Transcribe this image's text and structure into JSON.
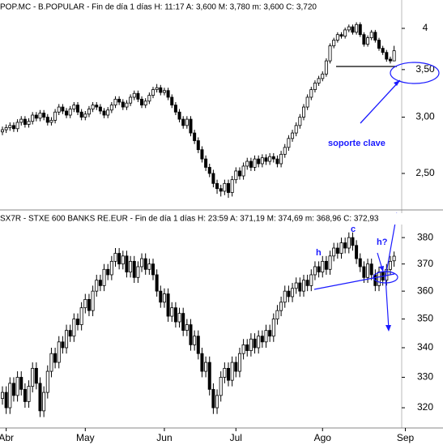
{
  "chart_data": [
    {
      "type": "candlestick",
      "title": "POP.MC - B.POPULAR - Fin de día 1 días H: 11:17 A: 3,600 M: 3,780 m: 3,600 C: 3,720",
      "log_scale": true,
      "up_color": "#ffffff",
      "down_color": "#000000",
      "ylim": [
        2.227,
        4.385
      ],
      "yticks": [
        4,
        {
          "value": 3.5,
          "label": "3,50"
        },
        {
          "value": 3.0,
          "label": "3,00"
        },
        {
          "value": 2.5,
          "label": "2,50"
        }
      ],
      "annotations": [
        "soporte clave"
      ],
      "ohlc": [
        [
          2.86,
          2.91,
          2.83,
          2.88
        ],
        [
          2.88,
          2.93,
          2.85,
          2.9
        ],
        [
          2.9,
          2.95,
          2.87,
          2.92
        ],
        [
          2.92,
          2.95,
          2.86,
          2.89
        ],
        [
          2.89,
          2.98,
          2.86,
          2.95
        ],
        [
          2.95,
          3.01,
          2.92,
          2.98
        ],
        [
          2.98,
          3.01,
          2.9,
          2.93
        ],
        [
          2.93,
          2.99,
          2.9,
          2.96
        ],
        [
          2.96,
          3.05,
          2.93,
          3.02
        ],
        [
          3.02,
          3.05,
          2.96,
          2.99
        ],
        [
          2.99,
          3.07,
          2.96,
          3.04
        ],
        [
          3.04,
          3.07,
          2.97,
          3.0
        ],
        [
          3.0,
          3.03,
          2.92,
          2.95
        ],
        [
          2.95,
          3.0,
          2.92,
          2.97
        ],
        [
          2.97,
          3.08,
          2.94,
          3.05
        ],
        [
          3.05,
          3.13,
          3.02,
          3.1
        ],
        [
          3.1,
          3.13,
          3.03,
          3.06
        ],
        [
          3.06,
          3.09,
          2.99,
          3.02
        ],
        [
          3.02,
          3.11,
          2.99,
          3.08
        ],
        [
          3.08,
          3.15,
          3.05,
          3.12
        ],
        [
          3.12,
          3.15,
          3.02,
          3.05
        ],
        [
          3.05,
          3.08,
          2.97,
          3.0
        ],
        [
          3.0,
          3.06,
          2.97,
          3.03
        ],
        [
          3.03,
          3.11,
          3.0,
          3.08
        ],
        [
          3.08,
          3.15,
          3.05,
          3.12
        ],
        [
          3.12,
          3.15,
          3.07,
          3.1
        ],
        [
          3.1,
          3.13,
          3.03,
          3.06
        ],
        [
          3.06,
          3.09,
          2.99,
          3.02
        ],
        [
          3.02,
          3.1,
          2.99,
          3.07
        ],
        [
          3.07,
          3.15,
          3.04,
          3.12
        ],
        [
          3.12,
          3.21,
          3.09,
          3.18
        ],
        [
          3.18,
          3.21,
          3.12,
          3.15
        ],
        [
          3.15,
          3.18,
          3.07,
          3.1
        ],
        [
          3.1,
          3.17,
          3.07,
          3.14
        ],
        [
          3.14,
          3.23,
          3.11,
          3.2
        ],
        [
          3.2,
          3.27,
          3.17,
          3.24
        ],
        [
          3.24,
          3.27,
          3.15,
          3.18
        ],
        [
          3.18,
          3.21,
          3.09,
          3.12
        ],
        [
          3.12,
          3.19,
          3.09,
          3.16
        ],
        [
          3.16,
          3.25,
          3.13,
          3.22
        ],
        [
          3.22,
          3.31,
          3.19,
          3.28
        ],
        [
          3.28,
          3.34,
          3.25,
          3.3
        ],
        [
          3.3,
          3.33,
          3.22,
          3.25
        ],
        [
          3.25,
          3.3,
          3.22,
          3.27
        ],
        [
          3.27,
          3.3,
          3.17,
          3.2
        ],
        [
          3.2,
          3.23,
          3.09,
          3.12
        ],
        [
          3.12,
          3.15,
          3.02,
          3.05
        ],
        [
          3.05,
          3.08,
          2.95,
          2.98
        ],
        [
          2.98,
          3.01,
          2.89,
          2.92
        ],
        [
          2.92,
          3.01,
          2.89,
          2.98
        ],
        [
          2.98,
          3.01,
          2.82,
          2.85
        ],
        [
          2.85,
          2.88,
          2.75,
          2.78
        ],
        [
          2.78,
          2.81,
          2.67,
          2.7
        ],
        [
          2.7,
          2.73,
          2.59,
          2.62
        ],
        [
          2.62,
          2.65,
          2.52,
          2.55
        ],
        [
          2.55,
          2.58,
          2.47,
          2.5
        ],
        [
          2.5,
          2.53,
          2.39,
          2.42
        ],
        [
          2.42,
          2.45,
          2.34,
          2.38
        ],
        [
          2.38,
          2.41,
          2.32,
          2.36
        ],
        [
          2.36,
          2.45,
          2.33,
          2.42
        ],
        [
          2.42,
          2.45,
          2.31,
          2.35
        ],
        [
          2.35,
          2.48,
          2.32,
          2.45
        ],
        [
          2.45,
          2.55,
          2.42,
          2.52
        ],
        [
          2.52,
          2.55,
          2.45,
          2.48
        ],
        [
          2.48,
          2.59,
          2.45,
          2.56
        ],
        [
          2.56,
          2.63,
          2.53,
          2.6
        ],
        [
          2.6,
          2.63,
          2.52,
          2.55
        ],
        [
          2.55,
          2.65,
          2.52,
          2.62
        ],
        [
          2.62,
          2.65,
          2.55,
          2.58
        ],
        [
          2.58,
          2.66,
          2.55,
          2.63
        ],
        [
          2.63,
          2.66,
          2.57,
          2.6
        ],
        [
          2.6,
          2.67,
          2.57,
          2.64
        ],
        [
          2.64,
          2.67,
          2.59,
          2.62
        ],
        [
          2.62,
          2.65,
          2.55,
          2.58
        ],
        [
          2.58,
          2.69,
          2.55,
          2.66
        ],
        [
          2.66,
          2.75,
          2.63,
          2.72
        ],
        [
          2.72,
          2.83,
          2.69,
          2.8
        ],
        [
          2.8,
          2.88,
          2.77,
          2.85
        ],
        [
          2.85,
          2.95,
          2.82,
          2.92
        ],
        [
          2.92,
          3.03,
          2.89,
          3.0
        ],
        [
          3.0,
          3.13,
          2.97,
          3.1
        ],
        [
          3.1,
          3.23,
          3.07,
          3.2
        ],
        [
          3.2,
          3.31,
          3.17,
          3.28
        ],
        [
          3.28,
          3.38,
          3.25,
          3.35
        ],
        [
          3.35,
          3.43,
          3.32,
          3.4
        ],
        [
          3.4,
          3.48,
          3.37,
          3.45
        ],
        [
          3.45,
          3.63,
          3.42,
          3.6
        ],
        [
          3.6,
          3.81,
          3.57,
          3.78
        ],
        [
          3.78,
          3.88,
          3.75,
          3.85
        ],
        [
          3.85,
          3.95,
          3.82,
          3.92
        ],
        [
          3.92,
          3.95,
          3.87,
          3.9
        ],
        [
          3.9,
          4.01,
          3.87,
          3.98
        ],
        [
          3.98,
          4.05,
          3.95,
          4.02
        ],
        [
          4.02,
          4.05,
          3.92,
          3.95
        ],
        [
          3.95,
          4.08,
          3.92,
          4.05
        ],
        [
          4.05,
          4.08,
          3.89,
          3.92
        ],
        [
          3.92,
          3.95,
          3.77,
          3.8
        ],
        [
          3.8,
          3.91,
          3.77,
          3.88
        ],
        [
          3.88,
          3.98,
          3.85,
          3.95
        ],
        [
          3.95,
          3.98,
          3.82,
          3.85
        ],
        [
          3.85,
          3.88,
          3.72,
          3.75
        ],
        [
          3.75,
          3.78,
          3.67,
          3.7
        ],
        [
          3.7,
          3.73,
          3.59,
          3.62
        ],
        [
          3.62,
          3.65,
          3.57,
          3.6
        ],
        [
          3.6,
          3.78,
          3.6,
          3.72
        ]
      ]
    },
    {
      "type": "candlestick",
      "title": "SX7R - STXE 600 BANKS RE.EUR - Fin de día 1 días H: 23:59 A: 371,19 M: 374,69 m: 368,96 C: 372,93",
      "log_scale": true,
      "up_color": "#ffffff",
      "down_color": "#000000",
      "ylim": [
        314.3,
        389.8
      ],
      "yticks": [
        380,
        370,
        360,
        350,
        340,
        330,
        320
      ],
      "annotations": [
        "h",
        "c",
        "h?"
      ],
      "categories": [
        null,
        "Abr",
        null,
        null,
        null,
        null,
        null,
        null,
        null,
        null,
        null,
        null,
        null,
        null,
        null,
        null,
        null,
        null,
        null,
        null,
        null,
        null,
        "May",
        null,
        null,
        null,
        null,
        null,
        null,
        null,
        null,
        null,
        null,
        null,
        null,
        null,
        null,
        null,
        null,
        null,
        null,
        null,
        null,
        "Jun",
        null,
        null,
        null,
        null,
        null,
        null,
        null,
        null,
        null,
        null,
        null,
        null,
        null,
        null,
        null,
        null,
        null,
        null,
        "Jul",
        null,
        null,
        null,
        null,
        null,
        null,
        null,
        null,
        null,
        null,
        null,
        null,
        null,
        null,
        null,
        null,
        null,
        null,
        null,
        null,
        null,
        null,
        "Ago",
        null,
        null,
        null,
        null,
        null,
        null,
        null,
        null,
        null,
        null,
        null,
        null,
        null,
        null,
        null,
        null,
        null,
        null,
        null,
        null,
        null,
        "Sep"
      ],
      "ohlc": [
        [
          323,
          327,
          321,
          325
        ],
        [
          325,
          327,
          318,
          320
        ],
        [
          320,
          330,
          318,
          328
        ],
        [
          328,
          330,
          322,
          324
        ],
        [
          324,
          332,
          322,
          330
        ],
        [
          330,
          332,
          324,
          326
        ],
        [
          326,
          328,
          320,
          322
        ],
        [
          322,
          329,
          320,
          327
        ],
        [
          327,
          335,
          325,
          333
        ],
        [
          333,
          335,
          326,
          328
        ],
        [
          328,
          330,
          317,
          319
        ],
        [
          319,
          327,
          317,
          325
        ],
        [
          325,
          334,
          323,
          332
        ],
        [
          332,
          340,
          330,
          338
        ],
        [
          338,
          340,
          333,
          335
        ],
        [
          335,
          344,
          333,
          342
        ],
        [
          342,
          344,
          338,
          340
        ],
        [
          340,
          348,
          338,
          346
        ],
        [
          346,
          348,
          342,
          344
        ],
        [
          344,
          352,
          342,
          350
        ],
        [
          350,
          352,
          346,
          348
        ],
        [
          348,
          356,
          346,
          354
        ],
        [
          354,
          359,
          352,
          357
        ],
        [
          357,
          359,
          351,
          353
        ],
        [
          353,
          362,
          351,
          360
        ],
        [
          360,
          366,
          358,
          364
        ],
        [
          364,
          366,
          360,
          362
        ],
        [
          362,
          370,
          360,
          368
        ],
        [
          368,
          370,
          364,
          366
        ],
        [
          366,
          373,
          364,
          371
        ],
        [
          371,
          376,
          369,
          374
        ],
        [
          374,
          376,
          368,
          370
        ],
        [
          370,
          375,
          368,
          373
        ],
        [
          373,
          375,
          365,
          367
        ],
        [
          367,
          373,
          365,
          371
        ],
        [
          371,
          373,
          363,
          365
        ],
        [
          365,
          371,
          363,
          369
        ],
        [
          369,
          374,
          367,
          372
        ],
        [
          372,
          374,
          366,
          368
        ],
        [
          368,
          372,
          366,
          370
        ],
        [
          370,
          372,
          364,
          366
        ],
        [
          366,
          368,
          358,
          360
        ],
        [
          360,
          362,
          354,
          356
        ],
        [
          356,
          361,
          354,
          359
        ],
        [
          359,
          361,
          349,
          351
        ],
        [
          351,
          356,
          349,
          354
        ],
        [
          354,
          356,
          347,
          349
        ],
        [
          349,
          354,
          347,
          352
        ],
        [
          352,
          354,
          344,
          346
        ],
        [
          346,
          350,
          344,
          348
        ],
        [
          348,
          350,
          339,
          341
        ],
        [
          341,
          346,
          339,
          344
        ],
        [
          344,
          346,
          336,
          338
        ],
        [
          338,
          340,
          330,
          332
        ],
        [
          332,
          337,
          330,
          335
        ],
        [
          335,
          337,
          324,
          326
        ],
        [
          326,
          328,
          318,
          320
        ],
        [
          320,
          326,
          318,
          324
        ],
        [
          324,
          332,
          322,
          330
        ],
        [
          330,
          335,
          328,
          333
        ],
        [
          333,
          335,
          327,
          329
        ],
        [
          329,
          337,
          327,
          335
        ],
        [
          335,
          337,
          330,
          332
        ],
        [
          332,
          340,
          330,
          338
        ],
        [
          338,
          343,
          336,
          341
        ],
        [
          341,
          343,
          337,
          339
        ],
        [
          339,
          345,
          337,
          343
        ],
        [
          343,
          345,
          338,
          340
        ],
        [
          340,
          346,
          338,
          344
        ],
        [
          344,
          346,
          340,
          342
        ],
        [
          342,
          348,
          340,
          346
        ],
        [
          346,
          348,
          342,
          344
        ],
        [
          344,
          352,
          342,
          350
        ],
        [
          350,
          355,
          348,
          353
        ],
        [
          353,
          358,
          351,
          356
        ],
        [
          356,
          362,
          354,
          360
        ],
        [
          360,
          362,
          356,
          358
        ],
        [
          358,
          363,
          356,
          361
        ],
        [
          361,
          365,
          359,
          363
        ],
        [
          363,
          365,
          358,
          360
        ],
        [
          360,
          366,
          358,
          364
        ],
        [
          364,
          366,
          360,
          362
        ],
        [
          362,
          368,
          360,
          366
        ],
        [
          366,
          371,
          364,
          369
        ],
        [
          369,
          371,
          365,
          367
        ],
        [
          367,
          373,
          365,
          371
        ],
        [
          371,
          373,
          366,
          368
        ],
        [
          368,
          375,
          366,
          373
        ],
        [
          373,
          378,
          371,
          376
        ],
        [
          376,
          378,
          372,
          374
        ],
        [
          374,
          380,
          372,
          378
        ],
        [
          378,
          380,
          374,
          376
        ],
        [
          376,
          382,
          374,
          380
        ],
        [
          380,
          382,
          375,
          377
        ],
        [
          377,
          379,
          370,
          372
        ],
        [
          372,
          374,
          367,
          369
        ],
        [
          369,
          371,
          363,
          365
        ],
        [
          365,
          372,
          363,
          370
        ],
        [
          370,
          372,
          364,
          366
        ],
        [
          366,
          368,
          360,
          362
        ],
        [
          362,
          369,
          360,
          367
        ],
        [
          367,
          369,
          362,
          364
        ],
        [
          364,
          370,
          362,
          368
        ],
        [
          368,
          373,
          366,
          371
        ],
        [
          371.19,
          374.69,
          368.96,
          372.93
        ],
        null,
        null,
        null
      ]
    }
  ]
}
